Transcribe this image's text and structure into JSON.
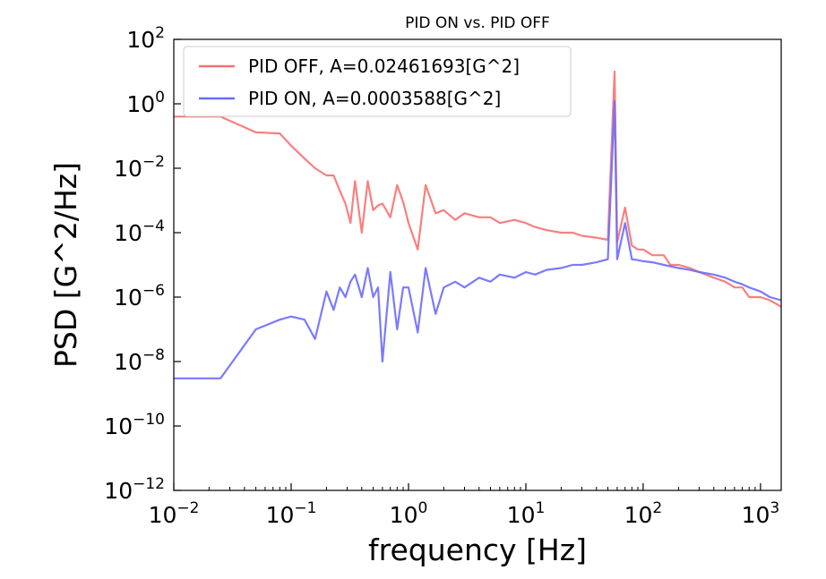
{
  "chart_data": {
    "type": "line",
    "title": "PID ON vs. PID OFF",
    "xlabel": "frequency [Hz]",
    "ylabel": "PSD [G^2/Hz]",
    "xscale": "log",
    "yscale": "log",
    "xlim": [
      0.01,
      1500
    ],
    "ylim": [
      1e-12,
      100
    ],
    "x_ticks": [
      {
        "base": "10",
        "exp": "−2",
        "value": 0.01
      },
      {
        "base": "10",
        "exp": "−1",
        "value": 0.1
      },
      {
        "base": "10",
        "exp": "0",
        "value": 1
      },
      {
        "base": "10",
        "exp": "1",
        "value": 10
      },
      {
        "base": "10",
        "exp": "2",
        "value": 100
      },
      {
        "base": "10",
        "exp": "3",
        "value": 1000
      }
    ],
    "y_ticks": [
      {
        "base": "10",
        "exp": "−12",
        "value": 1e-12
      },
      {
        "base": "10",
        "exp": "−10",
        "value": 1e-10
      },
      {
        "base": "10",
        "exp": "−8",
        "value": 1e-08
      },
      {
        "base": "10",
        "exp": "−6",
        "value": 1e-06
      },
      {
        "base": "10",
        "exp": "−4",
        "value": 0.0001
      },
      {
        "base": "10",
        "exp": "−2",
        "value": 0.01
      },
      {
        "base": "10",
        "exp": "0",
        "value": 1
      },
      {
        "base": "10",
        "exp": "2",
        "value": 100
      }
    ],
    "legend_position": "top-left",
    "grid": false,
    "series": [
      {
        "name": "PID OFF, A=0.02461693[G^2]",
        "color": "#f87171",
        "x": [
          0.01,
          0.025,
          0.05,
          0.08,
          0.1,
          0.13,
          0.16,
          0.2,
          0.23,
          0.26,
          0.29,
          0.32,
          0.35,
          0.4,
          0.45,
          0.5,
          0.55,
          0.6,
          0.7,
          0.8,
          0.9,
          1.0,
          1.2,
          1.4,
          1.7,
          2,
          2.5,
          3,
          4,
          5,
          6,
          8,
          10,
          12,
          15,
          20,
          25,
          30,
          40,
          50,
          57,
          60,
          70,
          80,
          90,
          100,
          120,
          150,
          170,
          200,
          250,
          300,
          400,
          500,
          600,
          700,
          800,
          1000,
          1200,
          1500
        ],
        "y": [
          0.4,
          0.4,
          0.13,
          0.12,
          0.05,
          0.02,
          0.01,
          0.006,
          0.006,
          0.002,
          0.0008,
          0.0002,
          0.004,
          0.0001,
          0.004,
          0.0005,
          0.0007,
          0.0008,
          0.0003,
          0.003,
          0.0009,
          0.0002,
          3e-05,
          0.003,
          0.0004,
          0.0005,
          0.00025,
          0.0004,
          0.0003,
          0.0003,
          0.0002,
          0.00025,
          0.0002,
          0.00015,
          0.00012,
          0.0001,
          0.0001,
          8e-05,
          7e-05,
          6e-05,
          10,
          5e-05,
          0.0006,
          4e-05,
          3e-05,
          3e-05,
          2e-05,
          2e-05,
          1e-05,
          1e-05,
          8e-06,
          6e-06,
          4e-06,
          3e-06,
          2e-06,
          2e-06,
          1e-06,
          1e-06,
          8e-07,
          5e-07
        ]
      },
      {
        "name": "PID ON, A=0.0003588[G^2]",
        "color": "#6b6bff",
        "x": [
          0.01,
          0.025,
          0.05,
          0.08,
          0.1,
          0.13,
          0.16,
          0.2,
          0.23,
          0.26,
          0.29,
          0.32,
          0.35,
          0.4,
          0.45,
          0.5,
          0.55,
          0.6,
          0.7,
          0.8,
          0.9,
          1.0,
          1.2,
          1.4,
          1.7,
          2,
          2.5,
          3,
          4,
          5,
          6,
          8,
          10,
          12,
          15,
          20,
          25,
          30,
          40,
          50,
          57,
          60,
          70,
          80,
          90,
          100,
          120,
          150,
          170,
          200,
          250,
          300,
          400,
          500,
          600,
          700,
          800,
          1000,
          1200,
          1500
        ],
        "y": [
          3e-09,
          3e-09,
          1e-07,
          2e-07,
          2.5e-07,
          2e-07,
          5e-08,
          1.5e-06,
          4e-07,
          2e-06,
          1e-06,
          3e-06,
          5e-06,
          1e-06,
          8e-06,
          1e-06,
          2e-06,
          1e-08,
          6e-06,
          1e-07,
          2e-06,
          2e-06,
          8e-08,
          8e-06,
          3e-07,
          2e-06,
          3e-06,
          2e-06,
          4e-06,
          3e-06,
          5e-06,
          4e-06,
          6e-06,
          5e-06,
          7e-06,
          8e-06,
          1e-05,
          1e-05,
          1.2e-05,
          1.5e-05,
          1.2,
          1.5e-05,
          0.0002,
          1.5e-05,
          1.4e-05,
          1.3e-05,
          1.2e-05,
          1e-05,
          9e-06,
          8e-06,
          7e-06,
          6e-06,
          5e-06,
          4e-06,
          3e-06,
          2.5e-06,
          2e-06,
          1.5e-06,
          1e-06,
          8e-07
        ]
      }
    ]
  }
}
